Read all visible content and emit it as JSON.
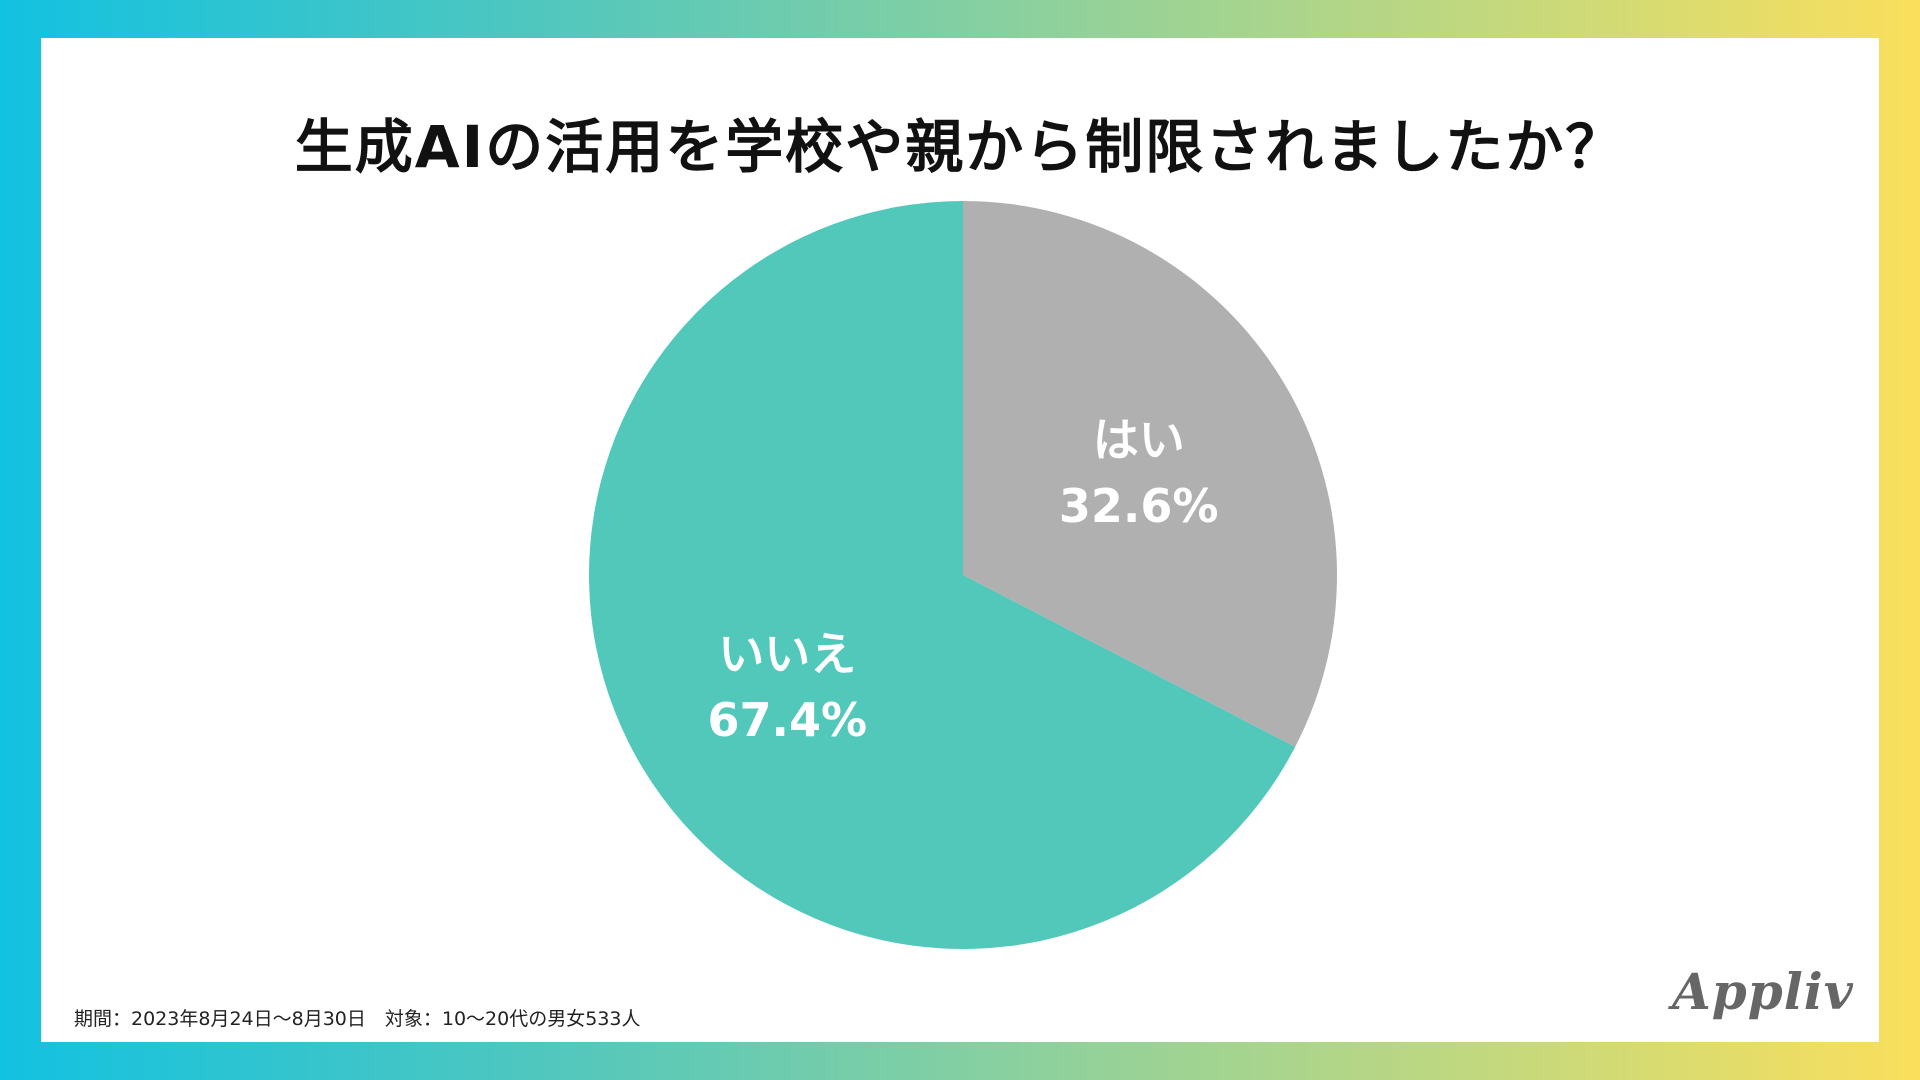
{
  "footnote": "期間：2023年8月24日〜8月30日　対象：10〜20代の男女533人",
  "brand": "Appliv",
  "chart_data": {
    "type": "pie",
    "title": "生成AIの活用を学校や親から制限されましたか？",
    "categories": [
      "はい",
      "いいえ"
    ],
    "values": [
      32.6,
      67.4
    ],
    "value_labels": [
      "32.6%",
      "67.4%"
    ],
    "colors": [
      "#b0b0b0",
      "#52c8bb"
    ],
    "start": "12 o'clock, clockwise",
    "legend": "none (labels inside slices)"
  }
}
